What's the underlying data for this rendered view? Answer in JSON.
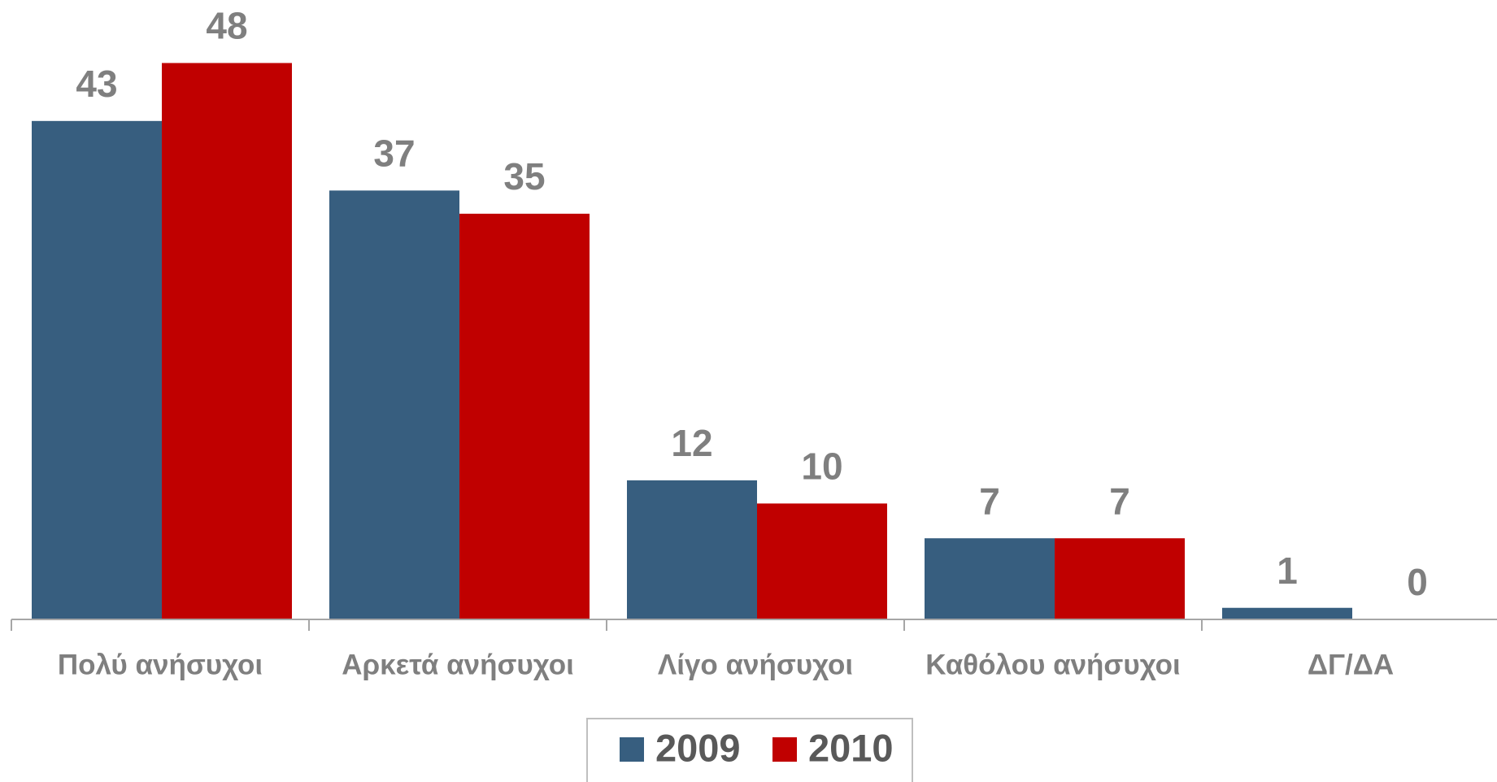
{
  "chart_data": {
    "type": "bar",
    "categories": [
      "Πολύ ανήσυχοι",
      "Αρκετά ανήσυχοι",
      "Λίγο ανήσυχοι",
      "Καθόλου ανήσυχοι",
      "ΔΓ/ΔΑ"
    ],
    "series": [
      {
        "name": "2009",
        "color": "#375e7f",
        "values": [
          43,
          37,
          12,
          7,
          1
        ]
      },
      {
        "name": "2010",
        "color": "#c00000",
        "values": [
          48,
          35,
          10,
          7,
          0
        ]
      }
    ],
    "ylim": [
      0,
      50
    ],
    "legend": "bottom"
  }
}
